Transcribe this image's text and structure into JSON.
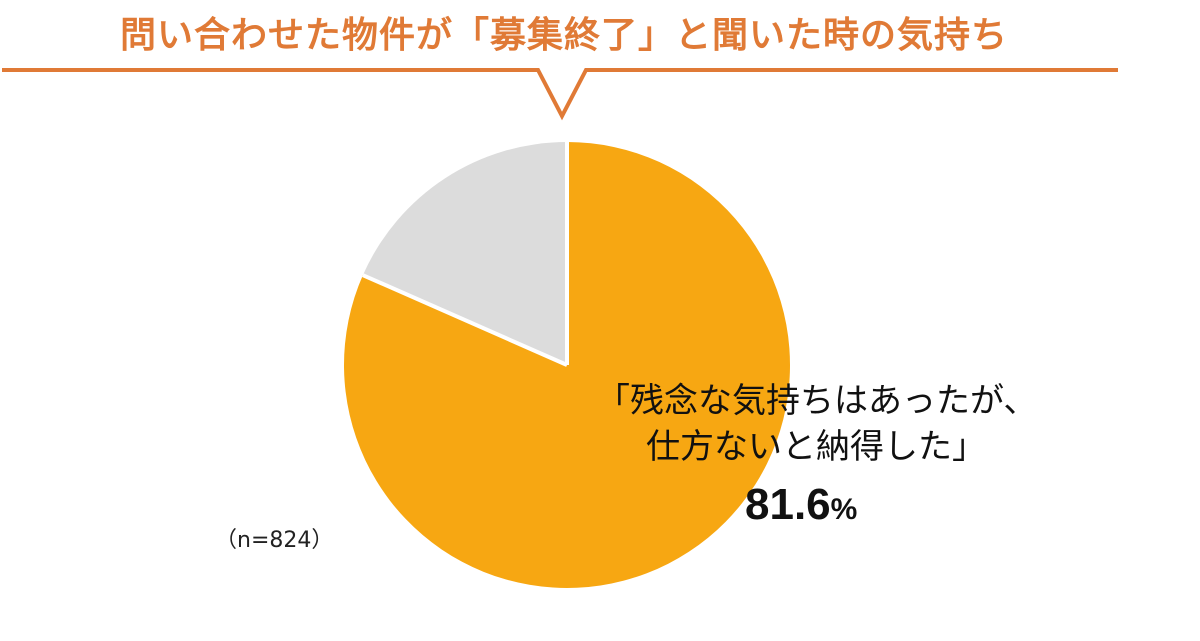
{
  "colors": {
    "accent": "#E07A36",
    "main_slice": "#F7A712",
    "other_slice": "#DCDCDC",
    "separator": "#FFFFFF"
  },
  "header": {
    "title": "問い合わせた物件が「募集終了」と聞いた時の気持ち"
  },
  "sample_size": "（n=824）",
  "chart_data": {
    "type": "pie",
    "title": "問い合わせた物件が「募集終了」と聞いた時の気持ち",
    "slices": [
      {
        "label_line1": "「残念な気持ちはあったが、",
        "label_line2": "仕方ないと納得した」",
        "value": 81.6,
        "value_text": "81.6",
        "unit": "%",
        "color": "#F7A712"
      },
      {
        "label_line1": "",
        "label_line2": "",
        "value": 18.4,
        "color": "#DCDCDC"
      }
    ],
    "start_angle": "12 o'clock",
    "direction": "clockwise"
  }
}
